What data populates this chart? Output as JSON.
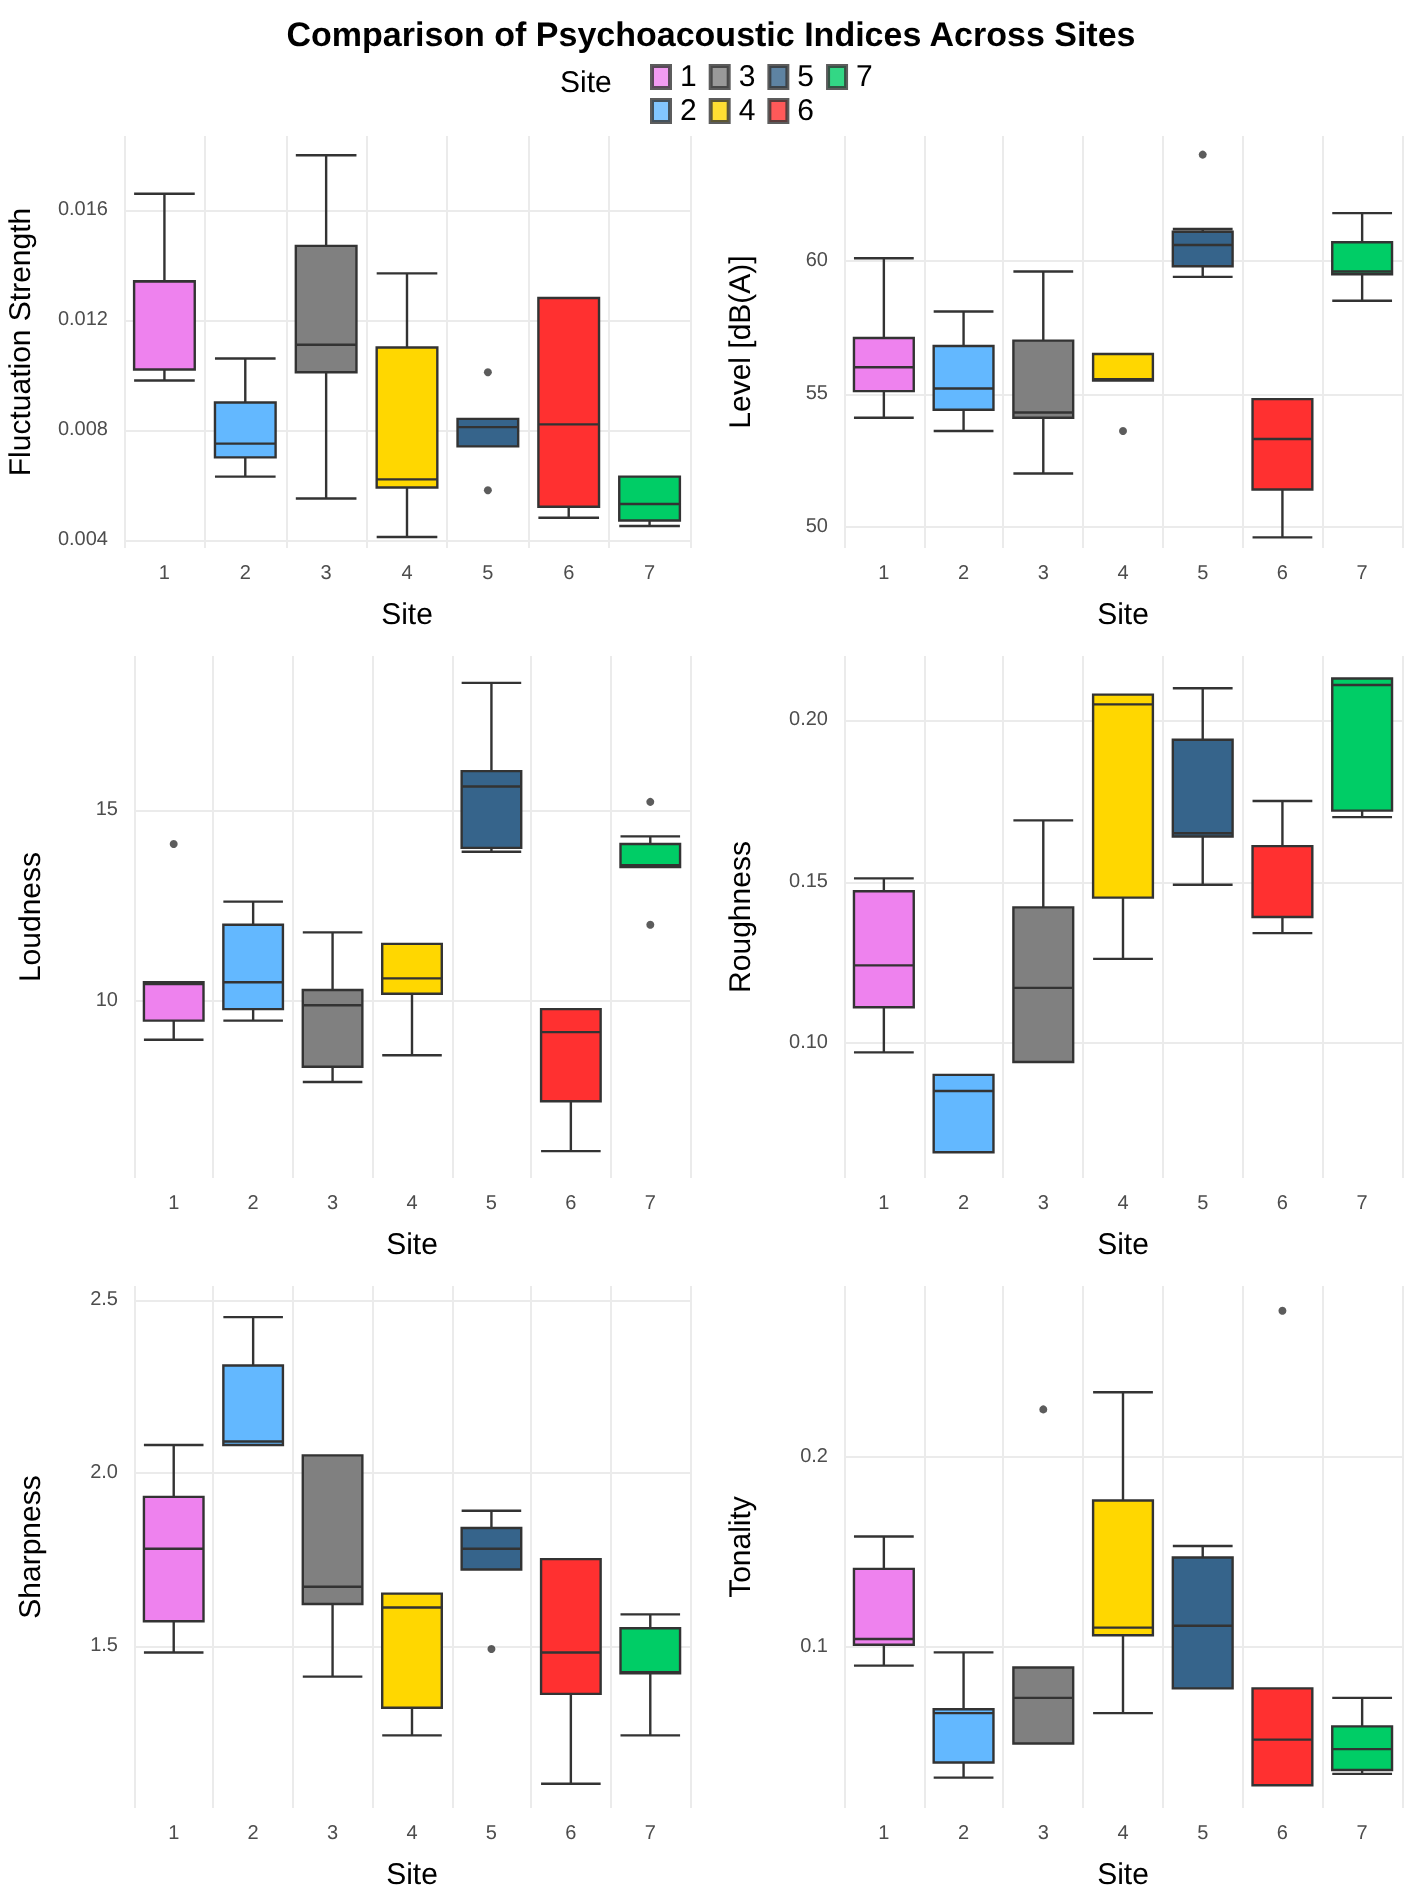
{
  "chart_data": [
    {
      "type": "box",
      "title": "Comparison of Psychoacoustic Indices Across Sites",
      "legend_title": "Site",
      "legend": "top",
      "xlabel": "Site",
      "ylabel": "Fluctuation Strength",
      "grid": true,
      "categories": [
        "1",
        "2",
        "3",
        "4",
        "5",
        "6",
        "7"
      ],
      "ylim": [
        0.0037,
        0.0187
      ],
      "yticks": [
        0.004,
        0.008,
        0.012,
        0.016
      ],
      "series": [
        {
          "name": "1",
          "color": "#ee82ee",
          "boxes": [
            {
              "low": 0.0098,
              "q1": 0.0102,
              "median": 0.0134,
              "q3": 0.01341,
              "high": 0.0166
            },
            null,
            null,
            null,
            null,
            null,
            null
          ]
        },
        {
          "name": "2",
          "color": "#63b8ff",
          "boxes": [
            null,
            {
              "low": 0.0063,
              "q1": 0.007,
              "median": 0.0075,
              "q3": 0.009,
              "high": 0.0106
            },
            null,
            null,
            null,
            null,
            null
          ]
        },
        {
          "name": "3",
          "color": "#808080",
          "boxes": [
            null,
            null,
            {
              "low": 0.0055,
              "q1": 0.0101,
              "median": 0.0111,
              "q3": 0.0147,
              "high": 0.018
            },
            null,
            null,
            null,
            null
          ]
        },
        {
          "name": "4",
          "color": "#ffd700",
          "boxes": [
            null,
            null,
            null,
            {
              "low": 0.0041,
              "q1": 0.0059,
              "median": 0.0062,
              "q3": 0.011,
              "high": 0.0137
            },
            null,
            null,
            null
          ]
        },
        {
          "name": "5",
          "color": "#36648b",
          "boxes": [
            null,
            null,
            null,
            null,
            {
              "low": 0.0074,
              "q1": 0.0074,
              "median": 0.0081,
              "q3": 0.0084,
              "high": 0.0084,
              "outliers": [
                0.0101,
                0.0058
              ]
            },
            null,
            null
          ]
        },
        {
          "name": "6",
          "color": "#ff3030",
          "boxes": [
            null,
            null,
            null,
            null,
            null,
            {
              "low": 0.0048,
              "q1": 0.0052,
              "median": 0.0082,
              "q3": 0.0128,
              "high": 0.0128
            },
            null
          ]
        },
        {
          "name": "7",
          "color": "#00cd66",
          "boxes": [
            null,
            null,
            null,
            null,
            null,
            null,
            {
              "low": 0.0045,
              "q1": 0.0047,
              "median": 0.0053,
              "q3": 0.0063,
              "high": 0.0063
            }
          ]
        }
      ]
    },
    {
      "type": "box",
      "xlabel": "Site",
      "ylabel": "Level [dB(A)]",
      "grid": true,
      "categories": [
        "1",
        "2",
        "3",
        "4",
        "5",
        "6",
        "7"
      ],
      "colors": [
        "#ee82ee",
        "#63b8ff",
        "#808080",
        "#ffd700",
        "#36648b",
        "#ff3030",
        "#00cd66"
      ],
      "ylim": [
        49.2,
        64.7
      ],
      "yticks": [
        50,
        55,
        60
      ],
      "boxes": [
        {
          "low": 54.1,
          "q1": 55.1,
          "median": 56,
          "q3": 57.1,
          "high": 60.1
        },
        {
          "low": 53.6,
          "q1": 54.4,
          "median": 55.2,
          "q3": 56.8,
          "high": 58.1
        },
        {
          "low": 52,
          "q1": 54.1,
          "median": 54.3,
          "q3": 57,
          "high": 59.6
        },
        {
          "low": 55.5,
          "q1": 55.5,
          "median": 55.55,
          "q3": 56.5,
          "high": 56.5,
          "outliers": [
            53.6
          ]
        },
        {
          "low": 59.4,
          "q1": 59.8,
          "median": 60.6,
          "q3": 61.1,
          "high": 61.2,
          "outliers": [
            64
          ]
        },
        {
          "low": 49.6,
          "q1": 51.4,
          "median": 53.3,
          "q3": 54.8,
          "high": 54.8
        },
        {
          "low": 58.5,
          "q1": 59.5,
          "median": 59.6,
          "q3": 60.7,
          "high": 61.8
        }
      ]
    },
    {
      "type": "box",
      "xlabel": "Site",
      "ylabel": "Loudness",
      "grid": true,
      "categories": [
        "1",
        "2",
        "3",
        "4",
        "5",
        "6",
        "7"
      ],
      "colors": [
        "#ee82ee",
        "#63b8ff",
        "#808080",
        "#ffd700",
        "#36648b",
        "#ff3030",
        "#00cd66"
      ],
      "ylim": [
        5.4,
        19
      ],
      "yticks": [
        10,
        15
      ],
      "boxes": [
        {
          "low": 9,
          "q1": 9.5,
          "median": 10.45,
          "q3": 10.5,
          "high": 10.5,
          "outliers": [
            14.1
          ]
        },
        {
          "low": 9.5,
          "q1": 9.8,
          "median": 10.5,
          "q3": 12,
          "high": 12.6
        },
        {
          "low": 7.9,
          "q1": 8.3,
          "median": 9.9,
          "q3": 10.3,
          "high": 11.8
        },
        {
          "low": 8.6,
          "q1": 10.2,
          "median": 10.6,
          "q3": 11.5,
          "high": 11.5
        },
        {
          "low": 13.9,
          "q1": 14,
          "median": 15.6,
          "q3": 16,
          "high": 18.3
        },
        {
          "low": 6.1,
          "q1": 7.4,
          "median": 9.2,
          "q3": 9.8,
          "high": 9.8
        },
        {
          "low": 13.5,
          "q1": 13.5,
          "median": 13.55,
          "q3": 14.1,
          "high": 14.3,
          "outliers": [
            15.2,
            12
          ]
        }
      ]
    },
    {
      "type": "box",
      "xlabel": "Site",
      "ylabel": "Roughness",
      "grid": true,
      "categories": [
        "1",
        "2",
        "3",
        "4",
        "5",
        "6",
        "7"
      ],
      "colors": [
        "#ee82ee",
        "#63b8ff",
        "#808080",
        "#ffd700",
        "#36648b",
        "#ff3030",
        "#00cd66"
      ],
      "ylim": [
        0.058,
        0.22
      ],
      "yticks": [
        {
          "value": 0.1,
          "label": "0.10"
        },
        {
          "value": 0.15,
          "label": "0.15"
        },
        {
          "value": 0.2,
          "label": "0.20"
        }
      ],
      "boxes": [
        {
          "low": 0.097,
          "q1": 0.111,
          "median": 0.124,
          "q3": 0.147,
          "high": 0.151
        },
        {
          "low": 0.066,
          "q1": 0.066,
          "median": 0.085,
          "q3": 0.09,
          "high": 0.09
        },
        {
          "low": 0.094,
          "q1": 0.094,
          "median": 0.117,
          "q3": 0.142,
          "high": 0.169
        },
        {
          "low": 0.126,
          "q1": 0.145,
          "median": 0.205,
          "q3": 0.208,
          "high": 0.208
        },
        {
          "low": 0.149,
          "q1": 0.164,
          "median": 0.165,
          "q3": 0.194,
          "high": 0.21
        },
        {
          "low": 0.134,
          "q1": 0.139,
          "median": 0.161,
          "q3": 0.161,
          "high": 0.175
        },
        {
          "low": 0.17,
          "q1": 0.172,
          "median": 0.211,
          "q3": 0.213,
          "high": 0.213
        }
      ]
    },
    {
      "type": "box",
      "xlabel": "Site",
      "ylabel": "Sharpness",
      "grid": true,
      "categories": [
        "1",
        "2",
        "3",
        "4",
        "5",
        "6",
        "7"
      ],
      "colors": [
        "#ee82ee",
        "#63b8ff",
        "#808080",
        "#ffd700",
        "#36648b",
        "#ff3030",
        "#00cd66"
      ],
      "ylim": [
        1.03,
        2.54
      ],
      "yticks": [
        1.5,
        {
          "value": 2,
          "label": "2.0"
        },
        2.5
      ],
      "boxes": [
        {
          "low": 1.48,
          "q1": 1.57,
          "median": 1.78,
          "q3": 1.93,
          "high": 2.08
        },
        {
          "low": 2.08,
          "q1": 2.08,
          "median": 2.09,
          "q3": 2.31,
          "high": 2.45
        },
        {
          "low": 1.41,
          "q1": 1.62,
          "median": 1.67,
          "q3": 2.05,
          "high": 2.05
        },
        {
          "low": 1.24,
          "q1": 1.32,
          "median": 1.61,
          "q3": 1.65,
          "high": 1.65
        },
        {
          "low": 1.72,
          "q1": 1.72,
          "median": 1.78,
          "q3": 1.84,
          "high": 1.89,
          "outliers": [
            1.49
          ]
        },
        {
          "low": 1.1,
          "q1": 1.36,
          "median": 1.48,
          "q3": 1.75,
          "high": 1.75
        },
        {
          "low": 1.24,
          "q1": 1.42,
          "median": 1.423,
          "q3": 1.55,
          "high": 1.59
        }
      ]
    },
    {
      "type": "box",
      "xlabel": "Site",
      "ylabel": "Tonality",
      "grid": true,
      "categories": [
        "1",
        "2",
        "3",
        "4",
        "5",
        "6",
        "7"
      ],
      "colors": [
        "#ee82ee",
        "#63b8ff",
        "#808080",
        "#ffd700",
        "#36648b",
        "#ff3030",
        "#00cd66"
      ],
      "ylim": [
        0.015,
        0.29
      ],
      "yticks": [
        0.1,
        0.2
      ],
      "boxes": [
        {
          "low": 0.09,
          "q1": 0.101,
          "median": 0.104,
          "q3": 0.141,
          "high": 0.158
        },
        {
          "low": 0.031,
          "q1": 0.039,
          "median": 0.065,
          "q3": 0.067,
          "high": 0.097
        },
        {
          "low": 0.049,
          "q1": 0.049,
          "median": 0.073,
          "q3": 0.089,
          "high": 0.089,
          "outliers": [
            0.225
          ]
        },
        {
          "low": 0.065,
          "q1": 0.106,
          "median": 0.11,
          "q3": 0.177,
          "high": 0.234
        },
        {
          "low": 0.078,
          "q1": 0.078,
          "median": 0.111,
          "q3": 0.147,
          "high": 0.153
        },
        {
          "low": 0.027,
          "q1": 0.027,
          "median": 0.051,
          "q3": 0.078,
          "high": 0.078,
          "outliers": [
            0.277
          ]
        },
        {
          "low": 0.033,
          "q1": 0.035,
          "median": 0.046,
          "q3": 0.058,
          "high": 0.073
        }
      ]
    }
  ]
}
